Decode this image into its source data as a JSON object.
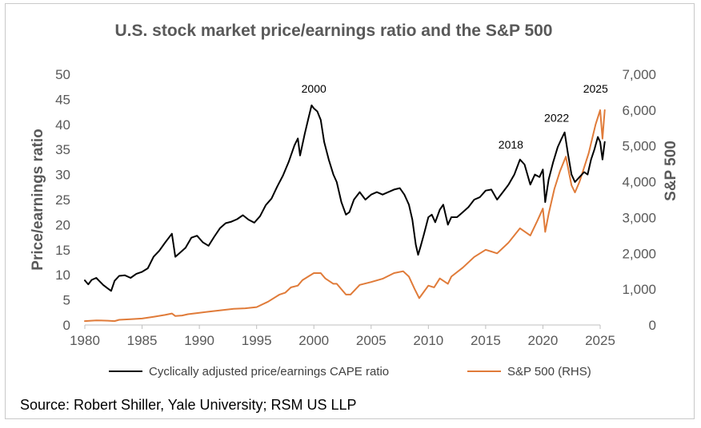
{
  "chart_data": {
    "type": "line",
    "title": "U.S. stock market price/earnings ratio and the S&P 500",
    "ylabel_left": "Price/earnings ratio",
    "ylabel_right": "S&P 500",
    "ylim_left": [
      0,
      50
    ],
    "ylim_right": [
      0,
      7000
    ],
    "xlim": [
      1980,
      2025
    ],
    "x_ticks": [
      "1980",
      "1985",
      "1990",
      "1995",
      "2000",
      "2005",
      "2010",
      "2015",
      "2020",
      "2025"
    ],
    "x_tick_values": [
      1980,
      1985,
      1990,
      1995,
      2000,
      2005,
      2010,
      2015,
      2020,
      2025
    ],
    "y_left_ticks": [
      "0",
      "5",
      "10",
      "15",
      "20",
      "25",
      "30",
      "35",
      "40",
      "45",
      "50"
    ],
    "y_left_tick_values": [
      0,
      5,
      10,
      15,
      20,
      25,
      30,
      35,
      40,
      45,
      50
    ],
    "y_right_ticks": [
      "0",
      "1,000",
      "2,000",
      "3,000",
      "4,000",
      "5,000",
      "6,000",
      "7,000"
    ],
    "y_right_tick_values": [
      0,
      1000,
      2000,
      3000,
      4000,
      5000,
      6000,
      7000
    ],
    "grid": false,
    "legend_position": "bottom",
    "annotations": [
      {
        "text": "2000",
        "x": 2000,
        "y": 46.3,
        "axis": "left"
      },
      {
        "text": "2018",
        "x": 2017.2,
        "y": 35.2,
        "axis": "left"
      },
      {
        "text": "2022",
        "x": 2021.2,
        "y": 40.5,
        "axis": "left"
      },
      {
        "text": "2025",
        "x": 2024.6,
        "y": 46.3,
        "axis": "left"
      }
    ],
    "series": [
      {
        "name": "Cyclically adjusted price/earnings CAPE ratio",
        "color": "#000000",
        "axis": "left",
        "x": [
          1980.0,
          1980.3,
          1980.6,
          1981.0,
          1981.3,
          1981.6,
          1982.0,
          1982.3,
          1982.6,
          1983.0,
          1983.5,
          1984.0,
          1984.5,
          1985.0,
          1985.5,
          1986.0,
          1986.5,
          1987.0,
          1987.6,
          1987.9,
          1988.3,
          1988.8,
          1989.3,
          1989.8,
          1990.3,
          1990.8,
          1991.3,
          1991.8,
          1992.3,
          1992.8,
          1993.3,
          1993.8,
          1994.3,
          1994.8,
          1995.3,
          1995.8,
          1996.3,
          1996.8,
          1997.3,
          1997.8,
          1998.3,
          1998.6,
          1998.8,
          1999.2,
          1999.5,
          1999.8,
          2000.0,
          2000.3,
          2000.6,
          2000.9,
          2001.3,
          2001.7,
          2002.0,
          2002.4,
          2002.8,
          2003.1,
          2003.5,
          2004.0,
          2004.5,
          2005.0,
          2005.5,
          2006.0,
          2006.5,
          2007.0,
          2007.5,
          2007.9,
          2008.3,
          2008.6,
          2008.9,
          2009.1,
          2009.3,
          2009.6,
          2010.0,
          2010.3,
          2010.6,
          2011.0,
          2011.3,
          2011.7,
          2012.0,
          2012.5,
          2013.0,
          2013.5,
          2014.0,
          2014.5,
          2015.0,
          2015.5,
          2016.0,
          2016.5,
          2017.0,
          2017.5,
          2018.0,
          2018.4,
          2018.9,
          2019.3,
          2019.7,
          2020.0,
          2020.2,
          2020.5,
          2020.9,
          2021.3,
          2021.6,
          2021.9,
          2022.2,
          2022.5,
          2022.8,
          2023.2,
          2023.6,
          2023.9,
          2024.2,
          2024.5,
          2024.8,
          2025.0,
          2025.2,
          2025.4
        ],
        "values": [
          8.9,
          8.1,
          9.0,
          9.4,
          8.7,
          8.0,
          7.3,
          6.8,
          8.8,
          9.8,
          9.9,
          9.4,
          10.2,
          10.6,
          11.3,
          13.6,
          14.8,
          16.4,
          18.2,
          13.6,
          14.4,
          15.4,
          17.4,
          17.8,
          16.5,
          15.8,
          17.6,
          19.3,
          20.3,
          20.6,
          21.1,
          21.9,
          21.0,
          20.4,
          21.7,
          23.9,
          25.2,
          27.6,
          29.8,
          32.5,
          35.8,
          37.2,
          33.8,
          38.1,
          41.0,
          43.8,
          43.2,
          42.6,
          40.9,
          36.5,
          33.0,
          30.0,
          28.5,
          24.5,
          22.0,
          22.5,
          25.0,
          26.5,
          25.0,
          26.0,
          26.5,
          26.0,
          26.5,
          27.0,
          27.3,
          26.0,
          24.0,
          21.0,
          16.0,
          14.0,
          15.5,
          18.0,
          21.5,
          22.0,
          20.5,
          23.0,
          24.0,
          20.0,
          21.5,
          21.5,
          22.5,
          23.5,
          25.0,
          25.5,
          26.8,
          27.0,
          25.0,
          26.5,
          28.0,
          30.0,
          33.0,
          32.0,
          28.0,
          30.0,
          29.5,
          31.0,
          24.5,
          29.0,
          32.5,
          35.5,
          37.0,
          38.4,
          34.0,
          30.0,
          28.5,
          29.5,
          30.5,
          30.0,
          33.0,
          35.0,
          37.5,
          36.5,
          33.0,
          36.5
        ]
      },
      {
        "name": "S&P 500 (RHS)",
        "color": "#e07b39",
        "axis": "right",
        "x": [
          1980.0,
          1981.0,
          1982.0,
          1982.6,
          1983.0,
          1984.0,
          1985.0,
          1986.0,
          1987.0,
          1987.6,
          1987.9,
          1988.5,
          1989.0,
          1990.0,
          1991.0,
          1992.0,
          1993.0,
          1994.0,
          1995.0,
          1996.0,
          1997.0,
          1997.5,
          1998.0,
          1998.6,
          1999.0,
          1999.5,
          2000.0,
          2000.6,
          2001.0,
          2001.7,
          2002.0,
          2002.8,
          2003.2,
          2004.0,
          2005.0,
          2006.0,
          2007.0,
          2007.8,
          2008.3,
          2008.8,
          2009.2,
          2010.0,
          2010.5,
          2011.0,
          2011.7,
          2012.0,
          2013.0,
          2014.0,
          2015.0,
          2015.5,
          2016.0,
          2017.0,
          2018.0,
          2018.9,
          2019.5,
          2020.0,
          2020.2,
          2020.5,
          2021.0,
          2021.5,
          2022.0,
          2022.5,
          2022.8,
          2023.2,
          2023.6,
          2024.0,
          2024.3,
          2024.6,
          2025.0,
          2025.2,
          2025.4
        ],
        "values": [
          110,
          130,
          120,
          110,
          145,
          160,
          180,
          230,
          280,
          320,
          250,
          265,
          300,
          340,
          380,
          415,
          450,
          465,
          500,
          650,
          850,
          900,
          1050,
          1100,
          1250,
          1350,
          1450,
          1450,
          1300,
          1150,
          1150,
          850,
          850,
          1120,
          1200,
          1290,
          1450,
          1500,
          1350,
          1000,
          750,
          1100,
          1050,
          1300,
          1150,
          1350,
          1600,
          1900,
          2100,
          2050,
          2000,
          2300,
          2700,
          2500,
          2900,
          3250,
          2600,
          3100,
          3800,
          4300,
          4700,
          3900,
          3700,
          4000,
          4400,
          4800,
          5200,
          5600,
          6000,
          5200,
          6000
        ]
      }
    ]
  },
  "source": "Source: Robert Shiller, Yale University; RSM US LLP"
}
